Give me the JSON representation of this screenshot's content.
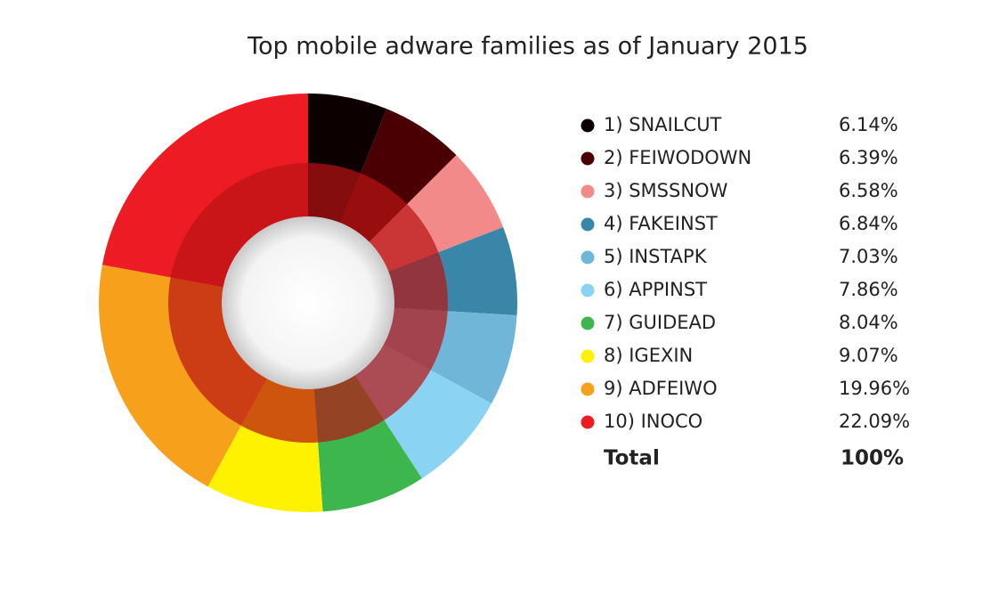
{
  "chart_data": {
    "type": "pie",
    "title": "Top mobile adware families as of January 2015",
    "categories": [
      "1) SNAILCUT",
      "2) FEIWODOWN",
      "3) SMSSNOW",
      "4) FAKEINST",
      "5) INSTAPK",
      "6) APPINST",
      "7) GUIDEAD",
      "8) IGEXIN",
      "9) ADFEIWO",
      "10) INOCO"
    ],
    "values": [
      6.14,
      6.39,
      6.58,
      6.84,
      7.03,
      7.86,
      8.04,
      9.07,
      19.96,
      22.09
    ],
    "value_labels": [
      "6.14%",
      "6.39%",
      "6.58%",
      "6.84%",
      "7.03%",
      "7.86%",
      "8.04%",
      "9.07%",
      "19.96%",
      "22.09%"
    ],
    "colors": [
      "#0d0000",
      "#4a0003",
      "#f28a8a",
      "#3a86a8",
      "#6fb6d8",
      "#8ad3f2",
      "#3db64e",
      "#fff200",
      "#f7a01b",
      "#ed1c24"
    ],
    "total": {
      "label": "Total",
      "value": "100%"
    }
  }
}
